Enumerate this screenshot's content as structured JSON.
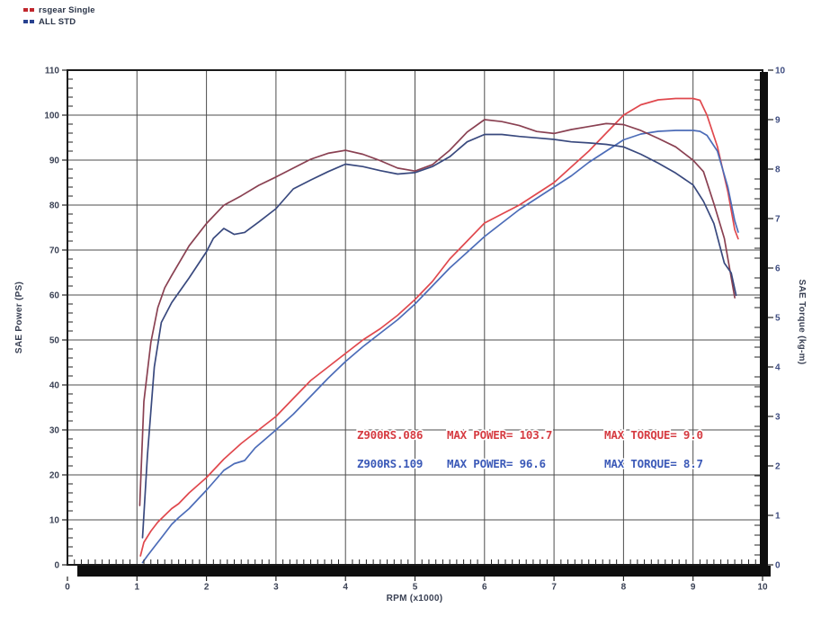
{
  "legend": {
    "items": [
      {
        "label": "rsgear Single",
        "color": "#c1272d"
      },
      {
        "label": "ALL STD",
        "color": "#27418f"
      }
    ]
  },
  "annotations": {
    "rows": [
      {
        "model": "Z900RS.086",
        "power_label": "MAX POWER= 103.7",
        "torque_label": "MAX TORQUE= 9.0",
        "color": "#d63c42",
        "max_power": 103.7,
        "max_torque": 9.0
      },
      {
        "model": "Z900RS.109",
        "power_label": "MAX POWER= 96.6",
        "torque_label": "MAX TORQUE= 8.7",
        "color": "#3c5ab8",
        "max_power": 96.6,
        "max_torque": 8.7
      }
    ]
  },
  "axes": {
    "x": {
      "title": "RPM (x1000)",
      "range": [
        0,
        10
      ],
      "ticks": [
        0,
        1,
        2,
        3,
        4,
        5,
        6,
        7,
        8,
        9,
        10
      ],
      "minor_step": 0.1
    },
    "y_left": {
      "title": "SAE Power (PS)",
      "range": [
        0,
        110
      ],
      "ticks": [
        0,
        10,
        20,
        30,
        40,
        50,
        60,
        70,
        80,
        90,
        100,
        110
      ],
      "minor_step": 2
    },
    "y_right": {
      "title": "SAE Torque (kg-m)",
      "range": [
        0,
        10
      ],
      "ticks": [
        0,
        1,
        2,
        3,
        4,
        5,
        6,
        7,
        8,
        9,
        10
      ],
      "minor_step": 0.2
    }
  },
  "colors": {
    "grid": "#4d4d4d",
    "frame": "#1a1a1a",
    "band": "#0e0e0e",
    "tick": "#222222"
  },
  "chart_data": {
    "type": "line",
    "title": "",
    "xlabel": "RPM (x1000)",
    "ylabel_left": "SAE Power (PS)",
    "ylabel_right": "SAE Torque (kg-m)",
    "grid": true,
    "legend_position": "top-left",
    "series": [
      {
        "name": "rsgear Single power",
        "axis": "left",
        "color": "#e0484d",
        "x": [
          1.05,
          1.1,
          1.2,
          1.3,
          1.4,
          1.5,
          1.6,
          1.75,
          2.0,
          2.25,
          2.5,
          2.75,
          3.0,
          3.25,
          3.5,
          3.75,
          4.0,
          4.25,
          4.5,
          4.75,
          5.0,
          5.25,
          5.5,
          5.75,
          6.0,
          6.25,
          6.5,
          6.75,
          7.0,
          7.25,
          7.5,
          7.75,
          8.0,
          8.25,
          8.5,
          8.75,
          9.0,
          9.1,
          9.2,
          9.35,
          9.5,
          9.6,
          9.65
        ],
        "values": [
          2,
          5,
          7.5,
          9.5,
          11,
          12.5,
          13.6,
          16,
          19.4,
          23.5,
          27,
          30,
          33,
          37,
          41,
          44,
          47,
          50,
          52.5,
          55.5,
          59,
          63,
          68,
          72,
          76,
          78,
          80,
          82.5,
          85,
          88.5,
          92,
          96,
          100,
          102.3,
          103.4,
          103.7,
          103.7,
          103.3,
          100,
          93,
          83,
          74.5,
          72.5
        ]
      },
      {
        "name": "ALL STD power",
        "axis": "left",
        "color": "#4c6cb8",
        "x": [
          1.08,
          1.15,
          1.25,
          1.35,
          1.5,
          1.6,
          1.75,
          2.0,
          2.25,
          2.4,
          2.55,
          2.7,
          3.0,
          3.25,
          3.5,
          3.75,
          4.0,
          4.25,
          4.5,
          4.75,
          5.0,
          5.25,
          5.5,
          5.75,
          6.0,
          6.25,
          6.5,
          6.75,
          7.0,
          7.25,
          7.5,
          7.75,
          8.0,
          8.25,
          8.5,
          8.75,
          9.0,
          9.1,
          9.2,
          9.35,
          9.5,
          9.6,
          9.65
        ],
        "values": [
          0.5,
          2,
          4,
          6,
          9,
          10.5,
          12.5,
          16.6,
          21,
          22.5,
          23.2,
          26,
          30,
          33.5,
          37.5,
          41.5,
          45.2,
          48.5,
          51.5,
          54.5,
          58,
          62,
          66,
          69.5,
          73,
          76,
          79,
          81.5,
          84,
          86.5,
          89.5,
          92,
          94.5,
          95.8,
          96.4,
          96.6,
          96.6,
          96.4,
          95.5,
          92,
          84,
          76.5,
          74
        ]
      },
      {
        "name": "rsgear Single torque",
        "axis": "right",
        "color": "#8a4152",
        "x": [
          1.04,
          1.1,
          1.2,
          1.3,
          1.4,
          1.5,
          1.75,
          2.0,
          2.25,
          2.5,
          2.75,
          3.0,
          3.25,
          3.5,
          3.75,
          4.0,
          4.25,
          4.5,
          4.75,
          5.0,
          5.25,
          5.5,
          5.75,
          6.0,
          6.25,
          6.5,
          6.75,
          7.0,
          7.25,
          7.5,
          7.75,
          8.0,
          8.25,
          8.5,
          8.75,
          9.0,
          9.15,
          9.3,
          9.45,
          9.6
        ],
        "values": [
          1.2,
          3.3,
          4.5,
          5.2,
          5.6,
          5.85,
          6.45,
          6.9,
          7.27,
          7.46,
          7.67,
          7.84,
          8.02,
          8.2,
          8.32,
          8.38,
          8.3,
          8.17,
          8.02,
          7.96,
          8.09,
          8.38,
          8.75,
          9.0,
          8.96,
          8.88,
          8.76,
          8.72,
          8.8,
          8.86,
          8.92,
          8.9,
          8.78,
          8.62,
          8.45,
          8.18,
          7.95,
          7.3,
          6.6,
          5.4
        ]
      },
      {
        "name": "ALL STD torque",
        "axis": "right",
        "color": "#39497e",
        "x": [
          1.08,
          1.15,
          1.25,
          1.35,
          1.5,
          1.75,
          2.0,
          2.1,
          2.25,
          2.4,
          2.55,
          2.75,
          3.0,
          3.25,
          3.5,
          3.75,
          4.0,
          4.25,
          4.5,
          4.75,
          5.0,
          5.25,
          5.5,
          5.75,
          6.0,
          6.25,
          6.5,
          6.75,
          7.0,
          7.25,
          7.5,
          7.75,
          8.0,
          8.25,
          8.5,
          8.75,
          9.0,
          9.15,
          9.3,
          9.45,
          9.55,
          9.62
        ],
        "values": [
          0.55,
          2.2,
          4.0,
          4.9,
          5.3,
          5.8,
          6.33,
          6.6,
          6.8,
          6.68,
          6.72,
          6.93,
          7.2,
          7.6,
          7.78,
          7.95,
          8.1,
          8.05,
          7.97,
          7.9,
          7.93,
          8.05,
          8.25,
          8.55,
          8.7,
          8.7,
          8.66,
          8.63,
          8.6,
          8.55,
          8.53,
          8.5,
          8.45,
          8.3,
          8.12,
          7.92,
          7.68,
          7.35,
          6.9,
          6.1,
          5.9,
          5.45
        ]
      }
    ]
  }
}
